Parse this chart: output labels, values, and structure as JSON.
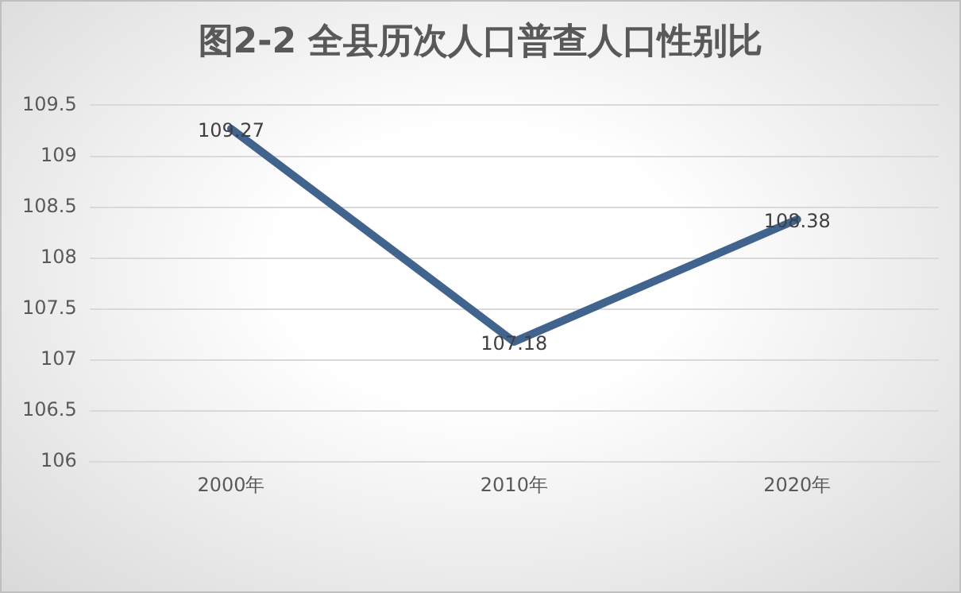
{
  "chart_data": {
    "type": "line",
    "title": "图2-2  全县历次人口普查人口性别比",
    "categories": [
      "2000年",
      "2010年",
      "2020年"
    ],
    "series": [
      {
        "color": "#41648f",
        "values": [
          109.27,
          107.18,
          108.38
        ]
      }
    ],
    "ylim": [
      106,
      109.5
    ],
    "yticks": [
      106,
      106.5,
      107,
      107.5,
      108,
      108.5,
      109,
      109.5
    ],
    "grid": "y",
    "data_labels": true,
    "legend": false,
    "marker": "none",
    "line_style": "solid"
  }
}
